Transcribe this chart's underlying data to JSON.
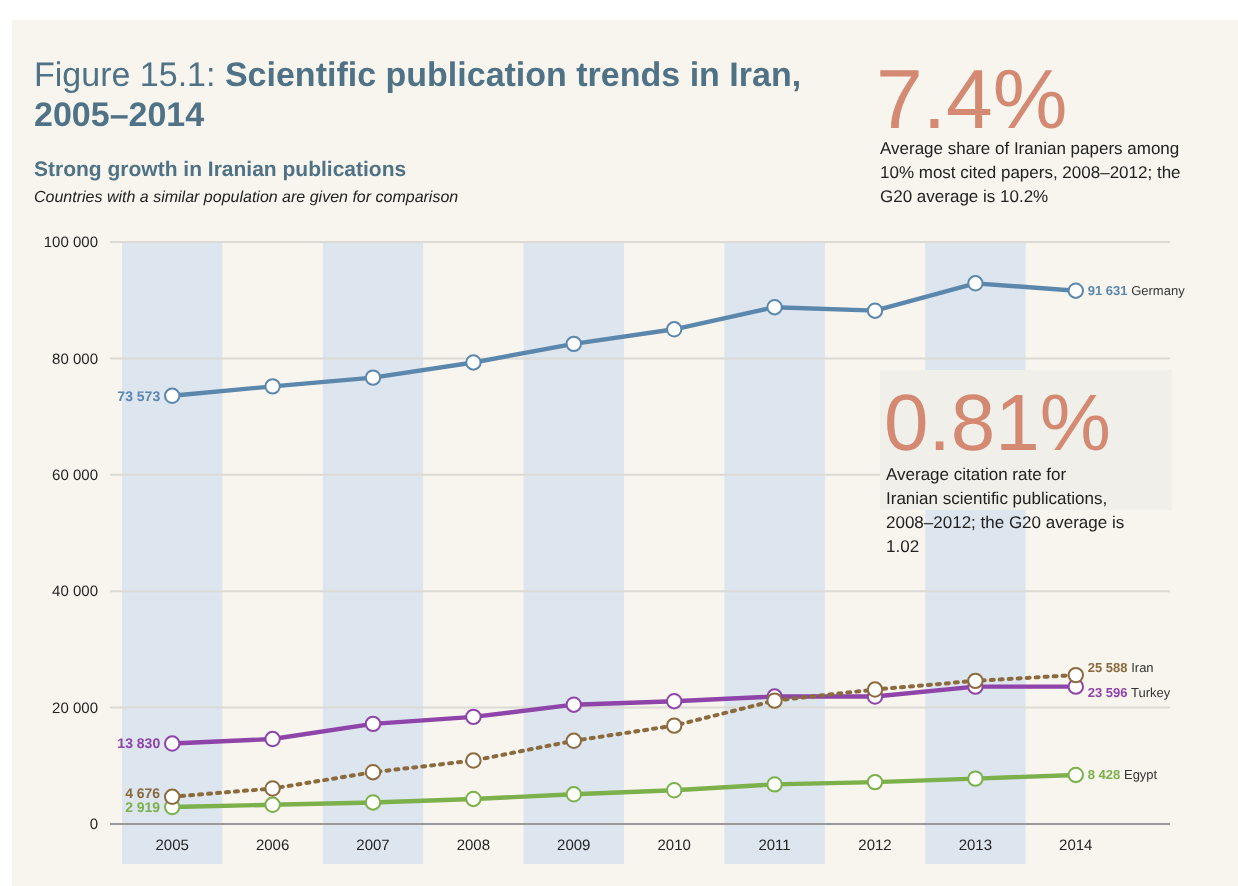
{
  "chart_data": {
    "type": "line",
    "title": "Figure 15.1: Scientific publication trends in Iran, 2005–2014",
    "subtitle": "Strong growth in Iranian publications",
    "annotations": [
      "Countries with a similar population are given for comparison",
      "7.4%",
      "Average share of Iranian papers among 10% most cited papers, 2008–2012; the G20 average is 10.2%",
      "0.81%",
      "Average citation rate for Iranian scientific publications, 2008–2012; the G20 average is 1.02"
    ],
    "categories": [
      "2005",
      "2006",
      "2007",
      "2008",
      "2009",
      "2010",
      "2011",
      "2012",
      "2013",
      "2014"
    ],
    "series": [
      {
        "name": "Germany",
        "color": "#5b87ad",
        "values": [
          73573,
          75200,
          76700,
          79300,
          82500,
          85000,
          88800,
          88200,
          92900,
          91631
        ],
        "value_labels": [
          "73 573",
          null,
          null,
          null,
          null,
          null,
          null,
          null,
          null,
          "91 631"
        ]
      },
      {
        "name": "Iran",
        "color": "#8b6a3e",
        "line_style": "dotted",
        "values": [
          4676,
          6100,
          8900,
          10900,
          14300,
          16900,
          21200,
          23100,
          24600,
          25588
        ],
        "value_labels": [
          "4 676",
          null,
          null,
          null,
          null,
          null,
          null,
          null,
          null,
          "25 588"
        ]
      },
      {
        "name": "Turkey",
        "color": "#8e44a8",
        "values": [
          13830,
          14600,
          17200,
          18400,
          20500,
          21100,
          21900,
          21900,
          23600,
          23596
        ],
        "value_labels": [
          "13 830",
          null,
          null,
          null,
          null,
          null,
          null,
          null,
          null,
          "23 596"
        ]
      },
      {
        "name": "Egypt",
        "color": "#7bb04a",
        "values": [
          2919,
          3300,
          3700,
          4300,
          5100,
          5800,
          6800,
          7200,
          7800,
          8428
        ],
        "value_labels": [
          "2 919",
          null,
          null,
          null,
          null,
          null,
          null,
          null,
          null,
          "8 428"
        ]
      }
    ],
    "ylim": [
      0,
      100000
    ],
    "yticks": [
      0,
      {
        "value": 20000,
        "label": "20 000"
      },
      {
        "value": 40000,
        "label": "40 000"
      },
      {
        "value": 60000,
        "label": "60 000"
      },
      {
        "value": 80000,
        "label": "80 000"
      },
      {
        "value": 100000,
        "label": "100 000"
      }
    ],
    "grid": "y",
    "marker": "circle",
    "line_style": "solid",
    "bands": [
      {
        "axis": "x",
        "from": "2005",
        "to": "2005",
        "color": "#dde5ef"
      },
      {
        "axis": "x",
        "from": "2007",
        "to": "2007",
        "color": "#dde5ef"
      },
      {
        "axis": "x",
        "from": "2009",
        "to": "2009",
        "color": "#dde5ef"
      },
      {
        "axis": "x",
        "from": "2011",
        "to": "2011",
        "color": "#dde5ef"
      },
      {
        "axis": "x",
        "from": "2013",
        "to": "2013",
        "color": "#dde5ef"
      }
    ]
  }
}
